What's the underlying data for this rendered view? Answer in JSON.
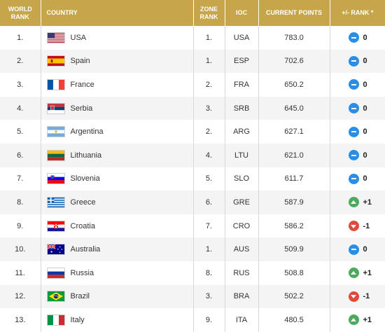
{
  "headers": {
    "world_rank": "WORLD RANK",
    "country": "COUNTRY",
    "zone_rank": "ZONE RANK",
    "ioc": "IOC",
    "current_points": "CURRENT POINTS",
    "plus_minus_rank": "+/- RANK *"
  },
  "colors": {
    "header_bg": "#c7a54a",
    "badge_equal": "#2b8ee6",
    "badge_up": "#4caa5c",
    "badge_down": "#e04a3a"
  },
  "rows": [
    {
      "world_rank": "1.",
      "country": "USA",
      "flag": "usa-flag",
      "zone_rank": "1.",
      "ioc": "USA",
      "points": "783.0",
      "change": "0",
      "trend": "eq"
    },
    {
      "world_rank": "2.",
      "country": "Spain",
      "flag": "spain-flag",
      "zone_rank": "1.",
      "ioc": "ESP",
      "points": "702.6",
      "change": "0",
      "trend": "eq"
    },
    {
      "world_rank": "3.",
      "country": "France",
      "flag": "france-flag",
      "zone_rank": "2.",
      "ioc": "FRA",
      "points": "650.2",
      "change": "0",
      "trend": "eq"
    },
    {
      "world_rank": "4.",
      "country": "Serbia",
      "flag": "serbia-flag",
      "zone_rank": "3.",
      "ioc": "SRB",
      "points": "645.0",
      "change": "0",
      "trend": "eq"
    },
    {
      "world_rank": "5.",
      "country": "Argentina",
      "flag": "argentina-flag",
      "zone_rank": "2.",
      "ioc": "ARG",
      "points": "627.1",
      "change": "0",
      "trend": "eq"
    },
    {
      "world_rank": "6.",
      "country": "Lithuania",
      "flag": "lithuania-flag",
      "zone_rank": "4.",
      "ioc": "LTU",
      "points": "621.0",
      "change": "0",
      "trend": "eq"
    },
    {
      "world_rank": "7.",
      "country": "Slovenia",
      "flag": "slovenia-flag",
      "zone_rank": "5.",
      "ioc": "SLO",
      "points": "611.7",
      "change": "0",
      "trend": "eq"
    },
    {
      "world_rank": "8.",
      "country": "Greece",
      "flag": "greece-flag",
      "zone_rank": "6.",
      "ioc": "GRE",
      "points": "587.9",
      "change": "+1",
      "trend": "up"
    },
    {
      "world_rank": "9.",
      "country": "Croatia",
      "flag": "croatia-flag",
      "zone_rank": "7.",
      "ioc": "CRO",
      "points": "586.2",
      "change": "-1",
      "trend": "down"
    },
    {
      "world_rank": "10.",
      "country": "Australia",
      "flag": "australia-flag",
      "zone_rank": "1.",
      "ioc": "AUS",
      "points": "509.9",
      "change": "0",
      "trend": "eq"
    },
    {
      "world_rank": "11.",
      "country": "Russia",
      "flag": "russia-flag",
      "zone_rank": "8.",
      "ioc": "RUS",
      "points": "508.8",
      "change": "+1",
      "trend": "up"
    },
    {
      "world_rank": "12.",
      "country": "Brazil",
      "flag": "brazil-flag",
      "zone_rank": "3.",
      "ioc": "BRA",
      "points": "502.2",
      "change": "-1",
      "trend": "down"
    },
    {
      "world_rank": "13.",
      "country": "Italy",
      "flag": "italy-flag",
      "zone_rank": "9.",
      "ioc": "ITA",
      "points": "480.5",
      "change": "+1",
      "trend": "up"
    }
  ]
}
